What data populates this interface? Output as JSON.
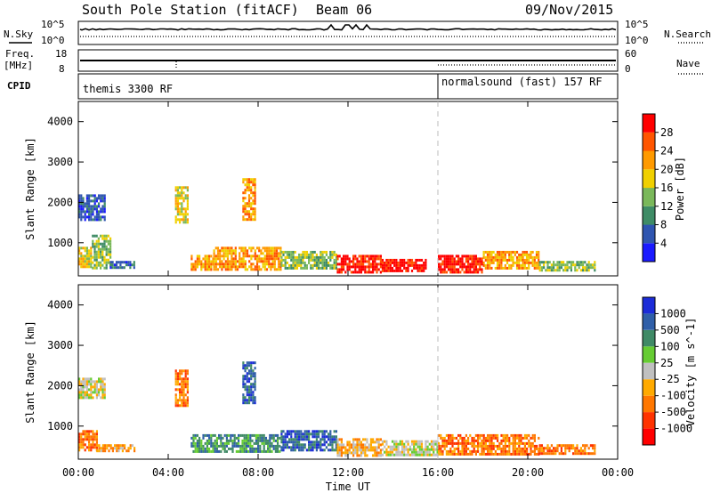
{
  "header": {
    "station_title": "South Pole Station (fitACF)",
    "beam_label": "Beam 06",
    "date_label": "09/Nov/2015"
  },
  "side_labels": {
    "n_sky": "N.Sky",
    "freq": "Freq.",
    "freq_unit": "[MHz]",
    "cpid": "CPID",
    "n_search": "N.Search",
    "nave": "Nave"
  },
  "cpid_segments": [
    {
      "label": "themis 3300 RF",
      "start_hour": 0
    },
    {
      "label": "normalsound (fast) 157 RF",
      "start_hour": 16
    }
  ],
  "noise_panel": {
    "left_ticks": [
      "10^5",
      "10^0"
    ],
    "right_ticks": [
      "10^5",
      "10^0"
    ]
  },
  "freq_panel": {
    "left_ticks": [
      "18",
      "8"
    ],
    "right_ticks": [
      "60",
      "0"
    ]
  },
  "chart_data": [
    {
      "type": "heatmap",
      "name": "power",
      "xlabel": "",
      "ylabel": "Slant Range [km]",
      "xlim": [
        0,
        24
      ],
      "ylim": [
        180,
        4500
      ],
      "y_ticks": [
        1000,
        2000,
        3000,
        4000
      ],
      "x_tick_labels": [],
      "colorbar": {
        "label": "Power [dB]",
        "range": [
          0,
          32
        ],
        "tick_labels": [
          "4",
          "8",
          "12",
          "16",
          "20",
          "24",
          "28"
        ],
        "colors": [
          "#1a1aff",
          "#2f55b0",
          "#3f8c66",
          "#7ab85a",
          "#f0d000",
          "#ff9a00",
          "#ff5500",
          "#ff0000"
        ]
      },
      "echo_regions": [
        {
          "hour_start": 0.0,
          "hour_end": 0.6,
          "range_start": 400,
          "range_end": 900,
          "level": 4
        },
        {
          "hour_start": 0.0,
          "hour_end": 1.2,
          "range_start": 1600,
          "range_end": 2200,
          "level": 1
        },
        {
          "hour_start": 0.6,
          "hour_end": 1.4,
          "range_start": 350,
          "range_end": 1200,
          "level": 3
        },
        {
          "hour_start": 1.4,
          "hour_end": 2.5,
          "range_start": 400,
          "range_end": 550,
          "level": 1
        },
        {
          "hour_start": 4.3,
          "hour_end": 4.9,
          "range_start": 1500,
          "range_end": 2400,
          "level": 4
        },
        {
          "hour_start": 5.0,
          "hour_end": 6.0,
          "range_start": 350,
          "range_end": 700,
          "level": 5
        },
        {
          "hour_start": 6.0,
          "hour_end": 9.0,
          "range_start": 350,
          "range_end": 900,
          "level": 5
        },
        {
          "hour_start": 7.3,
          "hour_end": 7.9,
          "range_start": 1600,
          "range_end": 2600,
          "level": 5
        },
        {
          "hour_start": 9.0,
          "hour_end": 11.5,
          "range_start": 400,
          "range_end": 800,
          "level": 3
        },
        {
          "hour_start": 11.5,
          "hour_end": 13.5,
          "range_start": 300,
          "range_end": 700,
          "level": 7
        },
        {
          "hour_start": 13.5,
          "hour_end": 15.5,
          "range_start": 300,
          "range_end": 600,
          "level": 7
        },
        {
          "hour_start": 16.0,
          "hour_end": 18.0,
          "range_start": 300,
          "range_end": 700,
          "level": 7
        },
        {
          "hour_start": 18.0,
          "hour_end": 20.5,
          "range_start": 350,
          "range_end": 800,
          "level": 5
        },
        {
          "hour_start": 20.5,
          "hour_end": 23.0,
          "range_start": 350,
          "range_end": 550,
          "level": 3
        }
      ]
    },
    {
      "type": "heatmap",
      "name": "velocity",
      "xlabel": "Time UT",
      "ylabel": "Slant Range [km]",
      "xlim": [
        0,
        24
      ],
      "ylim": [
        180,
        4500
      ],
      "y_ticks": [
        1000,
        2000,
        3000,
        4000
      ],
      "x_tick_labels": [
        "00:00",
        "04:00",
        "08:00",
        "12:00",
        "16:00",
        "20:00",
        "00:00"
      ],
      "colorbar": {
        "label": "Velocity [m s^-1]",
        "tick_labels": [
          "1000",
          "500",
          "100",
          "25",
          "-25",
          "-100",
          "-500",
          "-1000"
        ],
        "colors": [
          "#1c2cd8",
          "#2f5fa8",
          "#3f8a66",
          "#66cc33",
          "#c0c0c0",
          "#ffaa00",
          "#ff7700",
          "#ff3300",
          "#ff0000"
        ]
      },
      "echo_regions": [
        {
          "hour_start": 0.0,
          "hour_end": 0.8,
          "range_start": 400,
          "range_end": 900,
          "level": 2
        },
        {
          "hour_start": 0.0,
          "hour_end": 1.2,
          "range_start": 1700,
          "range_end": 2200,
          "level": 4
        },
        {
          "hour_start": 0.8,
          "hour_end": 2.5,
          "range_start": 400,
          "range_end": 550,
          "level": 3
        },
        {
          "hour_start": 4.3,
          "hour_end": 4.9,
          "range_start": 1500,
          "range_end": 2400,
          "level": 2
        },
        {
          "hour_start": 5.0,
          "hour_end": 9.0,
          "range_start": 350,
          "range_end": 800,
          "level": 6
        },
        {
          "hour_start": 7.3,
          "hour_end": 7.9,
          "range_start": 1600,
          "range_end": 2600,
          "level": 7
        },
        {
          "hour_start": 9.0,
          "hour_end": 11.5,
          "range_start": 400,
          "range_end": 900,
          "level": 7
        },
        {
          "hour_start": 11.5,
          "hour_end": 13.5,
          "range_start": 300,
          "range_end": 700,
          "level": 3
        },
        {
          "hour_start": 13.5,
          "hour_end": 16.0,
          "range_start": 300,
          "range_end": 650,
          "level": 4
        },
        {
          "hour_start": 16.0,
          "hour_end": 20.5,
          "range_start": 300,
          "range_end": 800,
          "level": 2
        },
        {
          "hour_start": 20.5,
          "hour_end": 23.0,
          "range_start": 350,
          "range_end": 550,
          "level": 2
        }
      ]
    }
  ]
}
